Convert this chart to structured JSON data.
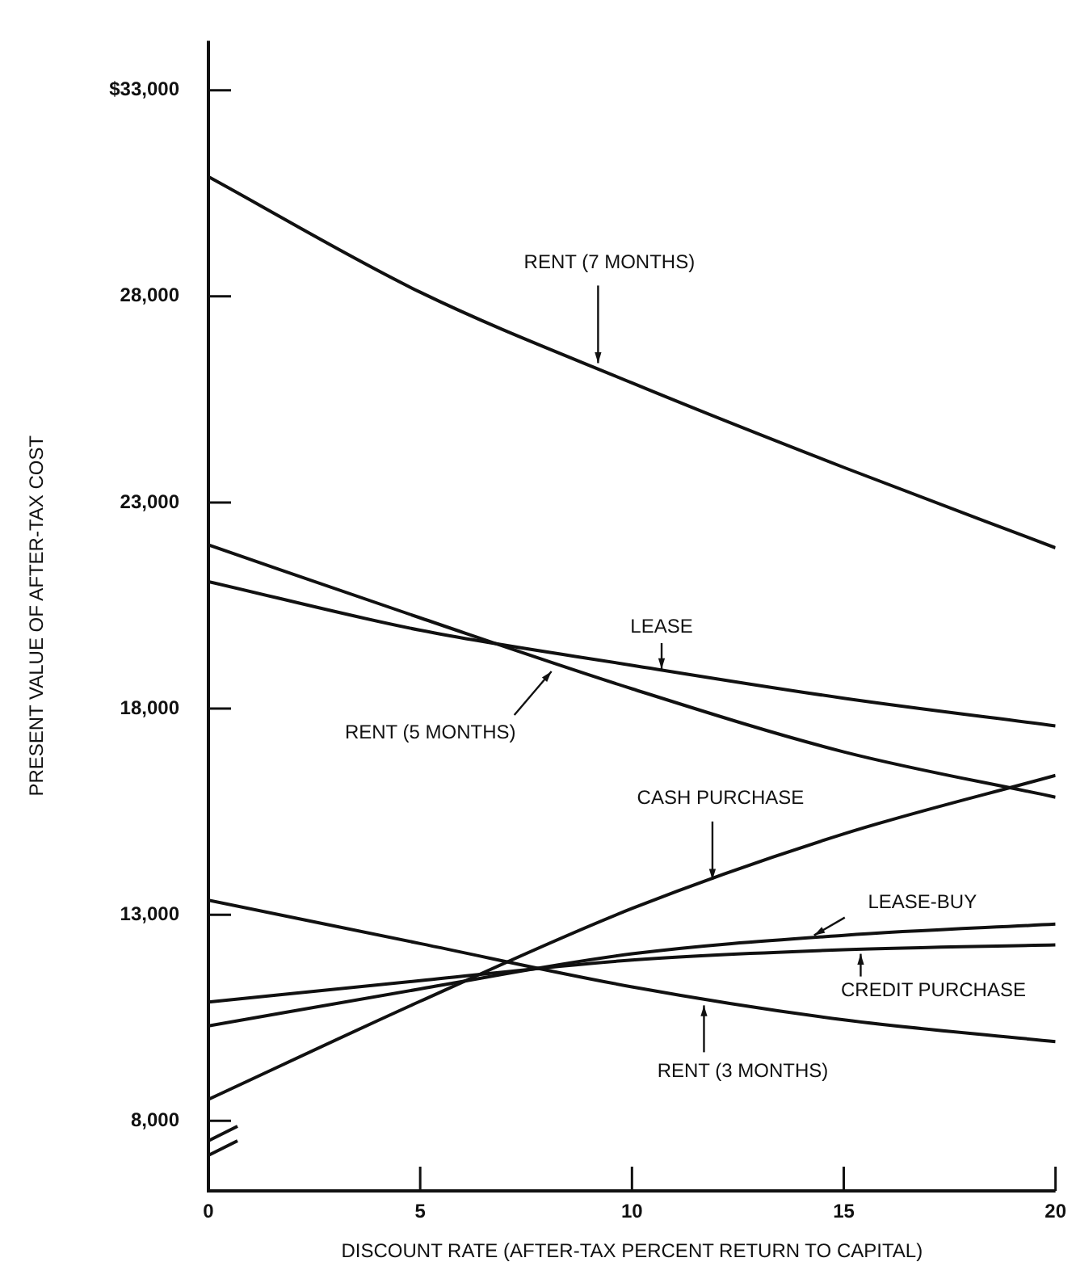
{
  "chart_data": {
    "type": "line",
    "xlabel": "DISCOUNT RATE (AFTER-TAX PERCENT RETURN TO CAPITAL)",
    "ylabel": "PRESENT VALUE OF AFTER-TAX COST",
    "x": [
      0,
      5,
      10,
      15,
      20
    ],
    "series": [
      {
        "color": "#111111",
        "values": [
          30900,
          28100,
          25900,
          23850,
          21900
        ]
      },
      {
        "color": "#111111",
        "values": [
          21970,
          20200,
          18480,
          16950,
          15850
        ]
      },
      {
        "color": "#111111",
        "values": [
          21080,
          19900,
          19050,
          18250,
          17580
        ]
      },
      {
        "color": "#111111",
        "values": [
          8520,
          10900,
          13150,
          14960,
          16380
        ]
      },
      {
        "color": "#111111",
        "values": [
          10300,
          11200,
          12050,
          12500,
          12770
        ]
      },
      {
        "color": "#111111",
        "values": [
          10880,
          11400,
          11900,
          12150,
          12270
        ]
      },
      {
        "color": "#111111",
        "values": [
          13350,
          12300,
          11250,
          10450,
          9920
        ]
      }
    ],
    "xlim": [
      0,
      20
    ],
    "xticks": [
      0,
      5,
      10,
      15,
      20
    ],
    "ylim": [
      6300,
      34200
    ],
    "yticks": [
      {
        "value": 8000,
        "label": "8,000"
      },
      {
        "value": 13000,
        "label": "13,000"
      },
      {
        "value": 18000,
        "label": "18,000"
      },
      {
        "value": 23000,
        "label": "23,000"
      },
      {
        "value": 28000,
        "label": "28,000"
      },
      {
        "value": 33000,
        "label": "$33,000"
      }
    ],
    "annotations": [
      {
        "text": "RENT (7 MONTHS)",
        "x": 9.2,
        "y": 26380
      },
      {
        "text": "LEASE",
        "x": 10.7,
        "y": 18960
      },
      {
        "text": "RENT (5 MONTHS)",
        "x": 8.1,
        "y": 18900
      },
      {
        "text": "CASH PURCHASE",
        "x": 11.9,
        "y": 13850
      },
      {
        "text": "LEASE-BUY",
        "x": 14.3,
        "y": 12500
      },
      {
        "text": "CREDIT PURCHASE",
        "x": 15.4,
        "y": 12050
      },
      {
        "text": "RENT (3 MONTHS)",
        "x": 11.7,
        "y": 10800
      }
    ],
    "grid": false,
    "legend": false
  }
}
